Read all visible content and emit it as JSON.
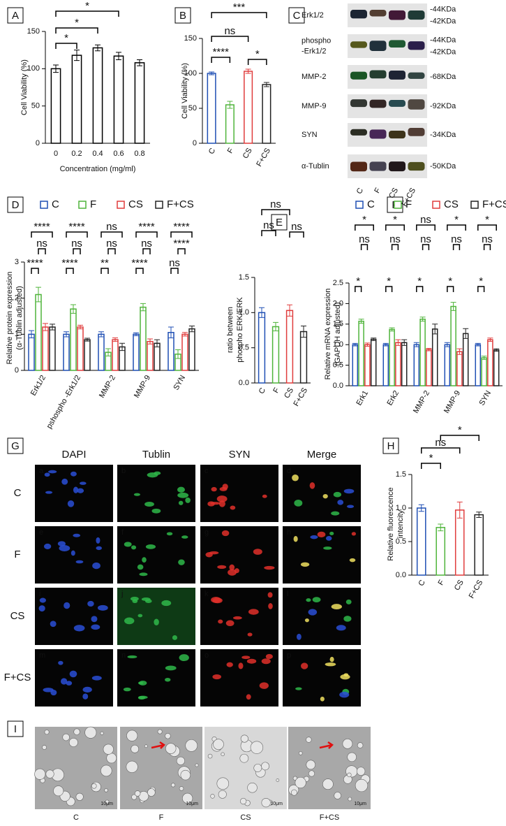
{
  "chart_data": [
    {
      "type": "bar",
      "panel": "A",
      "categories": [
        "0",
        "0.2",
        "0.4",
        "0.6",
        "0.8"
      ],
      "values": [
        100,
        118,
        128,
        117,
        108
      ],
      "errors": [
        5,
        7,
        4,
        5,
        4
      ],
      "color": "#000000",
      "ylim": [
        0,
        150
      ],
      "yticks": [
        0,
        50,
        100,
        150
      ],
      "ylabel": [
        "Cell Viability (%)"
      ],
      "xlabel": "Concentration (mg/ml)",
      "annotations": [
        "*",
        "*",
        "*"
      ]
    },
    {
      "type": "bar",
      "panel": "B",
      "categories": [
        "C",
        "F",
        "CS",
        "F+CS"
      ],
      "values": [
        100,
        55,
        103,
        84
      ],
      "errors": [
        2,
        5,
        3,
        3
      ],
      "colors": [
        "#1f4fb4",
        "#4fb43a",
        "#e03c3c",
        "#222222"
      ],
      "ylim": [
        0,
        150
      ],
      "yticks": [
        0,
        50,
        100,
        150
      ],
      "ylabel": [
        "Cell Viability (%)"
      ],
      "annotations": [
        "***",
        "ns",
        "****",
        "*"
      ]
    },
    {
      "type": "grouped-bar",
      "panel": "D",
      "categories": [
        "Erk1/2",
        "pshospho -Erk1/2",
        "MMP-2",
        "MMP-9",
        "SYN"
      ],
      "series": [
        {
          "name": "C",
          "color": "#1f4fb4",
          "values": [
            1.0,
            1.0,
            1.0,
            1.0,
            1.05
          ],
          "errors": [
            0.1,
            0.07,
            0.07,
            0.04,
            0.15
          ]
        },
        {
          "name": "F",
          "color": "#4fb43a",
          "values": [
            2.1,
            1.7,
            0.5,
            1.75,
            0.45
          ],
          "errors": [
            0.2,
            0.12,
            0.1,
            0.1,
            0.12
          ]
        },
        {
          "name": "CS",
          "color": "#e03c3c",
          "values": [
            1.2,
            1.2,
            0.85,
            0.8,
            1.0
          ],
          "errors": [
            0.1,
            0.05,
            0.05,
            0.07,
            0.05
          ]
        },
        {
          "name": "F+CS",
          "color": "#222222",
          "values": [
            1.2,
            0.85,
            0.65,
            0.75,
            1.15
          ],
          "errors": [
            0.08,
            0.04,
            0.1,
            0.1,
            0.08
          ]
        }
      ],
      "ylim": [
        0,
        3
      ],
      "yticks": [
        0,
        1,
        2,
        3
      ],
      "ylabel": [
        "Relative protein expression",
        "(α-Tublin adjusted)"
      ],
      "annotations": [
        "****",
        "ns",
        "****",
        "****",
        "ns",
        "****",
        "ns",
        "ns",
        "**",
        "****",
        "ns",
        "****",
        "****",
        "****",
        "ns"
      ]
    },
    {
      "type": "bar",
      "panel": "E",
      "categories": [
        "C",
        "F",
        "CS",
        "F+CS"
      ],
      "values": [
        1.0,
        0.8,
        1.03,
        0.73
      ],
      "errors": [
        0.07,
        0.06,
        0.08,
        0.08
      ],
      "colors": [
        "#1f4fb4",
        "#4fb43a",
        "#e03c3c",
        "#222222"
      ],
      "ylim": [
        0,
        1.5
      ],
      "yticks": [
        {
          "value": 0,
          "label": "0.0"
        },
        0.5,
        {
          "value": 1,
          "label": "1.0"
        },
        1.5
      ],
      "ylabel": [
        "ratio between",
        "phospho ERK/ERK"
      ],
      "annotations": [
        "ns",
        "ns",
        "ns"
      ]
    },
    {
      "type": "grouped-bar",
      "panel": "F",
      "categories": [
        "Erk1",
        "Erk2",
        "MMP-2",
        "MMP-9",
        "SYN"
      ],
      "series": [
        {
          "name": "C",
          "color": "#1f4fb4",
          "values": [
            1.0,
            1.0,
            1.0,
            1.0,
            1.0
          ],
          "errors": [
            0.03,
            0.03,
            0.05,
            0.05,
            0.03
          ]
        },
        {
          "name": "F",
          "color": "#4fb43a",
          "values": [
            1.57,
            1.37,
            1.62,
            1.93,
            0.68
          ],
          "errors": [
            0.05,
            0.04,
            0.05,
            0.1,
            0.04
          ]
        },
        {
          "name": "CS",
          "color": "#e03c3c",
          "values": [
            1.0,
            1.05,
            0.88,
            0.83,
            1.12
          ],
          "errors": [
            0.04,
            0.07,
            0.03,
            0.07,
            0.04
          ]
        },
        {
          "name": "F+CS",
          "color": "#222222",
          "values": [
            1.13,
            1.05,
            1.38,
            1.27,
            0.87
          ],
          "errors": [
            0.03,
            0.07,
            0.12,
            0.12,
            0.03
          ]
        }
      ],
      "ylim": [
        0,
        2.5
      ],
      "yticks": [
        {
          "value": 0,
          "label": "0.0"
        },
        0.5,
        {
          "value": 1,
          "label": "1.0"
        },
        1.5,
        {
          "value": 2,
          "label": "2.0"
        },
        2.5
      ],
      "ylabel": [
        "Relative mRNA expression",
        "(GAPDH adjusted)"
      ],
      "annotations": [
        "*",
        "ns",
        "*",
        "*",
        "ns",
        "*",
        "ns",
        "ns",
        "*",
        "*",
        "ns",
        "*",
        "*",
        "ns",
        "*"
      ]
    },
    {
      "type": "bar",
      "panel": "H",
      "categories": [
        "C",
        "F",
        "CS",
        "F+CS"
      ],
      "values": [
        1.0,
        0.71,
        0.97,
        0.9
      ],
      "errors": [
        0.05,
        0.05,
        0.12,
        0.04
      ],
      "colors": [
        "#1f4fb4",
        "#4fb43a",
        "#e03c3c",
        "#222222"
      ],
      "ylim": [
        0,
        1.5
      ],
      "yticks": [
        {
          "value": 0,
          "label": "0.0"
        },
        0.5,
        {
          "value": 1,
          "label": "1.0"
        },
        1.5
      ],
      "ylabel": [
        "Relative fluorescence",
        "intencity"
      ],
      "annotations": [
        "*",
        "ns",
        "*"
      ]
    }
  ],
  "blot": {
    "panel": "C",
    "rows": [
      {
        "label": [
          "Erk1/2"
        ],
        "markers": [
          "-44KDa",
          "-42KDa"
        ]
      },
      {
        "label": [
          "phospho",
          "-Erk1/2"
        ],
        "markers": [
          "-44KDa",
          "-42KDa"
        ]
      },
      {
        "label": [
          "MMP-2"
        ],
        "markers": [
          "-68KDa"
        ]
      },
      {
        "label": [
          "MMP-9"
        ],
        "markers": [
          "-92KDa"
        ]
      },
      {
        "label": [
          "SYN"
        ],
        "markers": [
          "-34KDa"
        ]
      },
      {
        "label": [
          "α-Tublin"
        ],
        "markers": [
          "-50KDa"
        ]
      }
    ],
    "lanes": [
      "C",
      "F",
      "CS",
      "F+CS"
    ]
  },
  "microscopy": {
    "panel": "G",
    "columns": [
      "DAPI",
      "Tublin",
      "SYN",
      "Merge"
    ],
    "rows": [
      "C",
      "F",
      "CS",
      "F+CS"
    ],
    "tiles": [
      "a",
      "b",
      "c",
      "d",
      "e",
      "f",
      "g",
      "h",
      "i",
      "j",
      "k",
      "l",
      "m",
      "n",
      "o",
      "p"
    ]
  },
  "em": {
    "panel": "I",
    "labels": [
      "C",
      "F",
      "CS",
      "F+CS"
    ],
    "scale_labels": [
      "10μm",
      "10μm",
      "10μm",
      "10μm"
    ]
  }
}
